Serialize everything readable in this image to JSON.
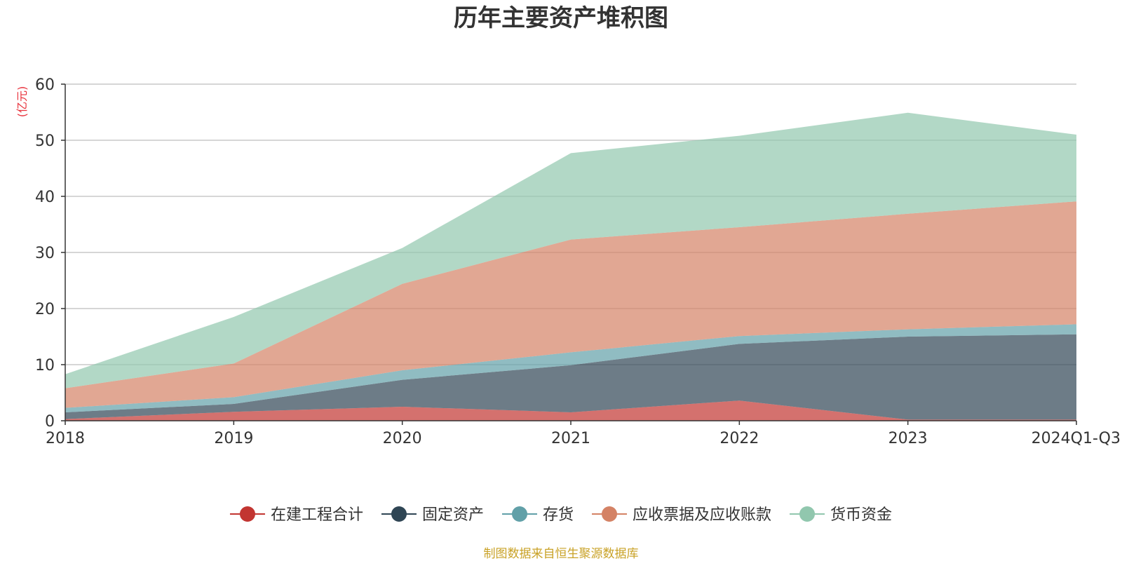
{
  "chart_data": {
    "type": "area",
    "stacked": true,
    "title": "历年主要资产堆积图",
    "ylabel": "(亿元)",
    "xlabel": "",
    "ylim": [
      0,
      60
    ],
    "yticks": [
      0,
      10,
      20,
      30,
      40,
      50,
      60
    ],
    "grid": true,
    "legend_position": "bottom-center",
    "categories": [
      "2018",
      "2019",
      "2020",
      "2021",
      "2022",
      "2023",
      "2024Q1-Q3"
    ],
    "series": [
      {
        "name": "在建工程合计",
        "color": "#c23531",
        "values": [
          0.3,
          1.6,
          2.5,
          1.5,
          3.6,
          0.2,
          0.2
        ]
      },
      {
        "name": "固定资产",
        "color": "#2f4554",
        "values": [
          1.2,
          1.4,
          4.8,
          8.4,
          10.1,
          14.8,
          15.2
        ]
      },
      {
        "name": "存货",
        "color": "#61a0a8",
        "values": [
          0.8,
          1.2,
          1.7,
          2.3,
          1.4,
          1.3,
          1.8
        ]
      },
      {
        "name": "应收票据及应收账款",
        "color": "#d48265",
        "values": [
          3.5,
          6.0,
          15.4,
          20.1,
          19.4,
          20.6,
          21.9
        ]
      },
      {
        "name": "货币资金",
        "color": "#91c7ae",
        "values": [
          2.5,
          8.3,
          6.4,
          15.4,
          16.3,
          18.0,
          11.9
        ]
      }
    ]
  },
  "source_note": "制图数据来自恒生聚源数据库"
}
